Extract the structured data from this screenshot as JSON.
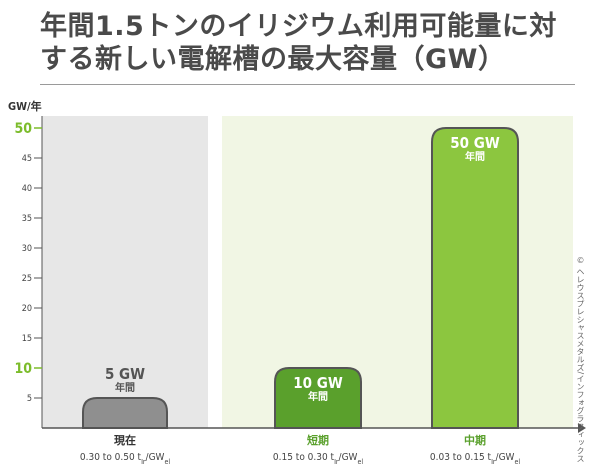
{
  "title": "年間1.5トンのイリジウム利用可能量に対する新しい電解槽の最大容量（GW）",
  "credit": "© ヘレウスプレシャスメタルズ/インフォグラフィックス",
  "colors": {
    "gray_bg": "#e7e7e7",
    "green_bg": "#f1f6e4",
    "gray_bar": "#8f8f8f",
    "dark_green_bar": "#5aa02c",
    "light_green_bar": "#8cc63f",
    "bar_stroke": "#555555",
    "axis": "#555555",
    "accent_green": "#7cbc2b"
  },
  "chart_data": {
    "type": "bar",
    "title": "年間1.5トンのイリジウム利用可能量に対する新しい電解槽の最大容量（GW）",
    "ylabel": "GW/年",
    "ylim": [
      0,
      52
    ],
    "yticks": [
      5,
      10,
      15,
      20,
      25,
      30,
      35,
      40,
      45,
      50
    ],
    "highlight_ticks": [
      10,
      50
    ],
    "categories": [
      "現在",
      "短期",
      "中期"
    ],
    "sublabels": [
      "0.30 to 0.50 t_Ir/GW_el",
      "0.15 to 0.30 t_Ir/GW_el",
      "0.03 to 0.15 t_Ir/GW_el"
    ],
    "values": [
      5,
      10,
      50
    ],
    "value_labels": [
      "5 GW",
      "10 GW",
      "50 GW"
    ],
    "value_sublabels": [
      "年間",
      "年間",
      "年間"
    ]
  }
}
